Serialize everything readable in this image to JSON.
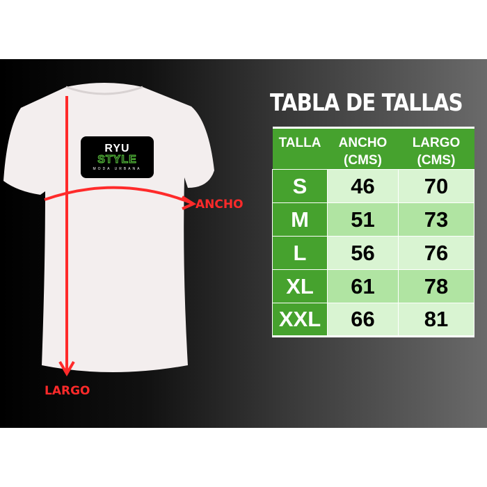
{
  "title": "TABLA DE TALLAS",
  "logo": {
    "line1": "RYU",
    "line2": "STYLE",
    "line3": "MODA URBANA"
  },
  "labels": {
    "width": "ANCHO",
    "length": "LARGO"
  },
  "table": {
    "headers": [
      {
        "line1": "TALLA",
        "line2": ""
      },
      {
        "line1": "ANCHO",
        "line2": "(CMS)"
      },
      {
        "line1": "LARGO",
        "line2": "(CMS)"
      }
    ],
    "rows": [
      {
        "size": "S",
        "ancho": "46",
        "largo": "70"
      },
      {
        "size": "M",
        "ancho": "51",
        "largo": "73"
      },
      {
        "size": "L",
        "ancho": "56",
        "largo": "76"
      },
      {
        "size": "XL",
        "ancho": "61",
        "largo": "78"
      },
      {
        "size": "XXL",
        "ancho": "66",
        "largo": "81"
      }
    ]
  },
  "colors": {
    "header_green": "#46a22e",
    "row_light": "#d9f4d2",
    "row_mid": "#b0e4a2",
    "arrow_red": "#ff2a2a"
  }
}
